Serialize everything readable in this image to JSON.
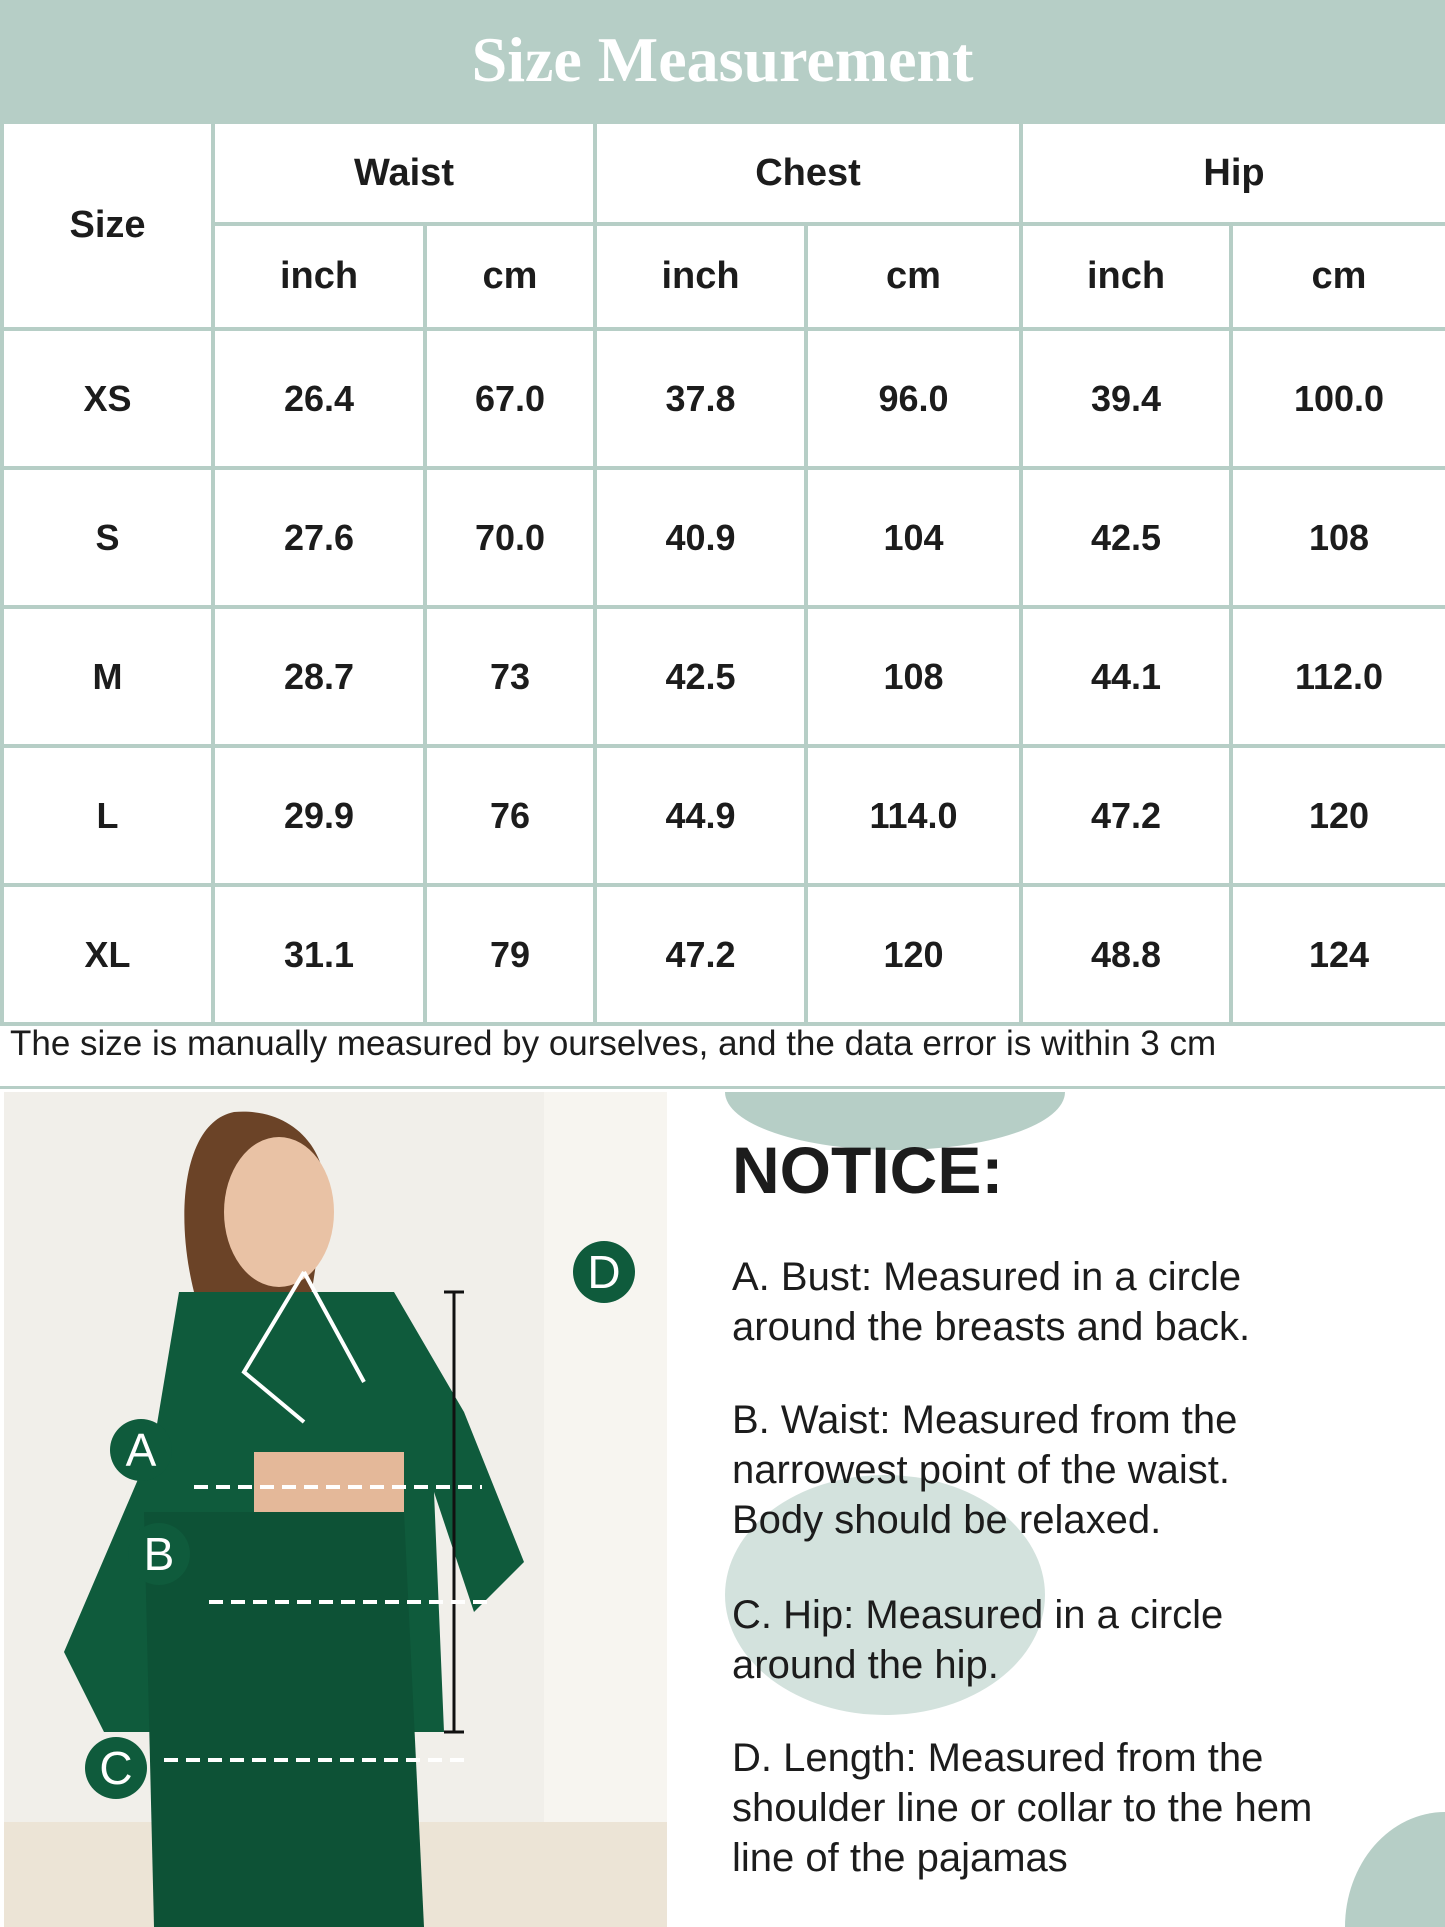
{
  "title": "Size Measurement",
  "table": {
    "size_header": "Size",
    "groups": [
      "Waist",
      "Chest",
      "Hip"
    ],
    "units": [
      "inch",
      "cm",
      "inch",
      "cm",
      "inch",
      "cm"
    ],
    "rows": [
      [
        "XS",
        "26.4",
        "67.0",
        "37.8",
        "96.0",
        "39.4",
        "100.0"
      ],
      [
        "S",
        "27.6",
        "70.0",
        "40.9",
        "104",
        "42.5",
        "108"
      ],
      [
        "M",
        "28.7",
        "73",
        "42.5",
        "108",
        "44.1",
        "112.0"
      ],
      [
        "L",
        "29.9",
        "76",
        "44.9",
        "114.0",
        "47.2",
        "120"
      ],
      [
        "XL",
        "31.1",
        "79",
        "47.2",
        "120",
        "48.8",
        "124"
      ]
    ]
  },
  "footnote": "The size is manually measured by ourselves, and the data error is within 3 cm",
  "markers": [
    "A",
    "B",
    "C",
    "D"
  ],
  "notice": {
    "title": "NOTICE:",
    "items": [
      [
        "A. Bust: Measured in a circle",
        "around the breasts and back."
      ],
      [
        "B. Waist: Measured from the",
        "narrowest point of the waist.",
        "Body should be relaxed."
      ],
      [
        "C. Hip: Measured in a circle",
        "around the hip."
      ],
      [
        "D. Length: Measured from the",
        "shoulder line or collar to the hem",
        "line of the pajamas"
      ]
    ]
  },
  "colors": {
    "accent": "#b6cec6",
    "garment": "#0f5b3c",
    "text": "#1c1c1c"
  }
}
